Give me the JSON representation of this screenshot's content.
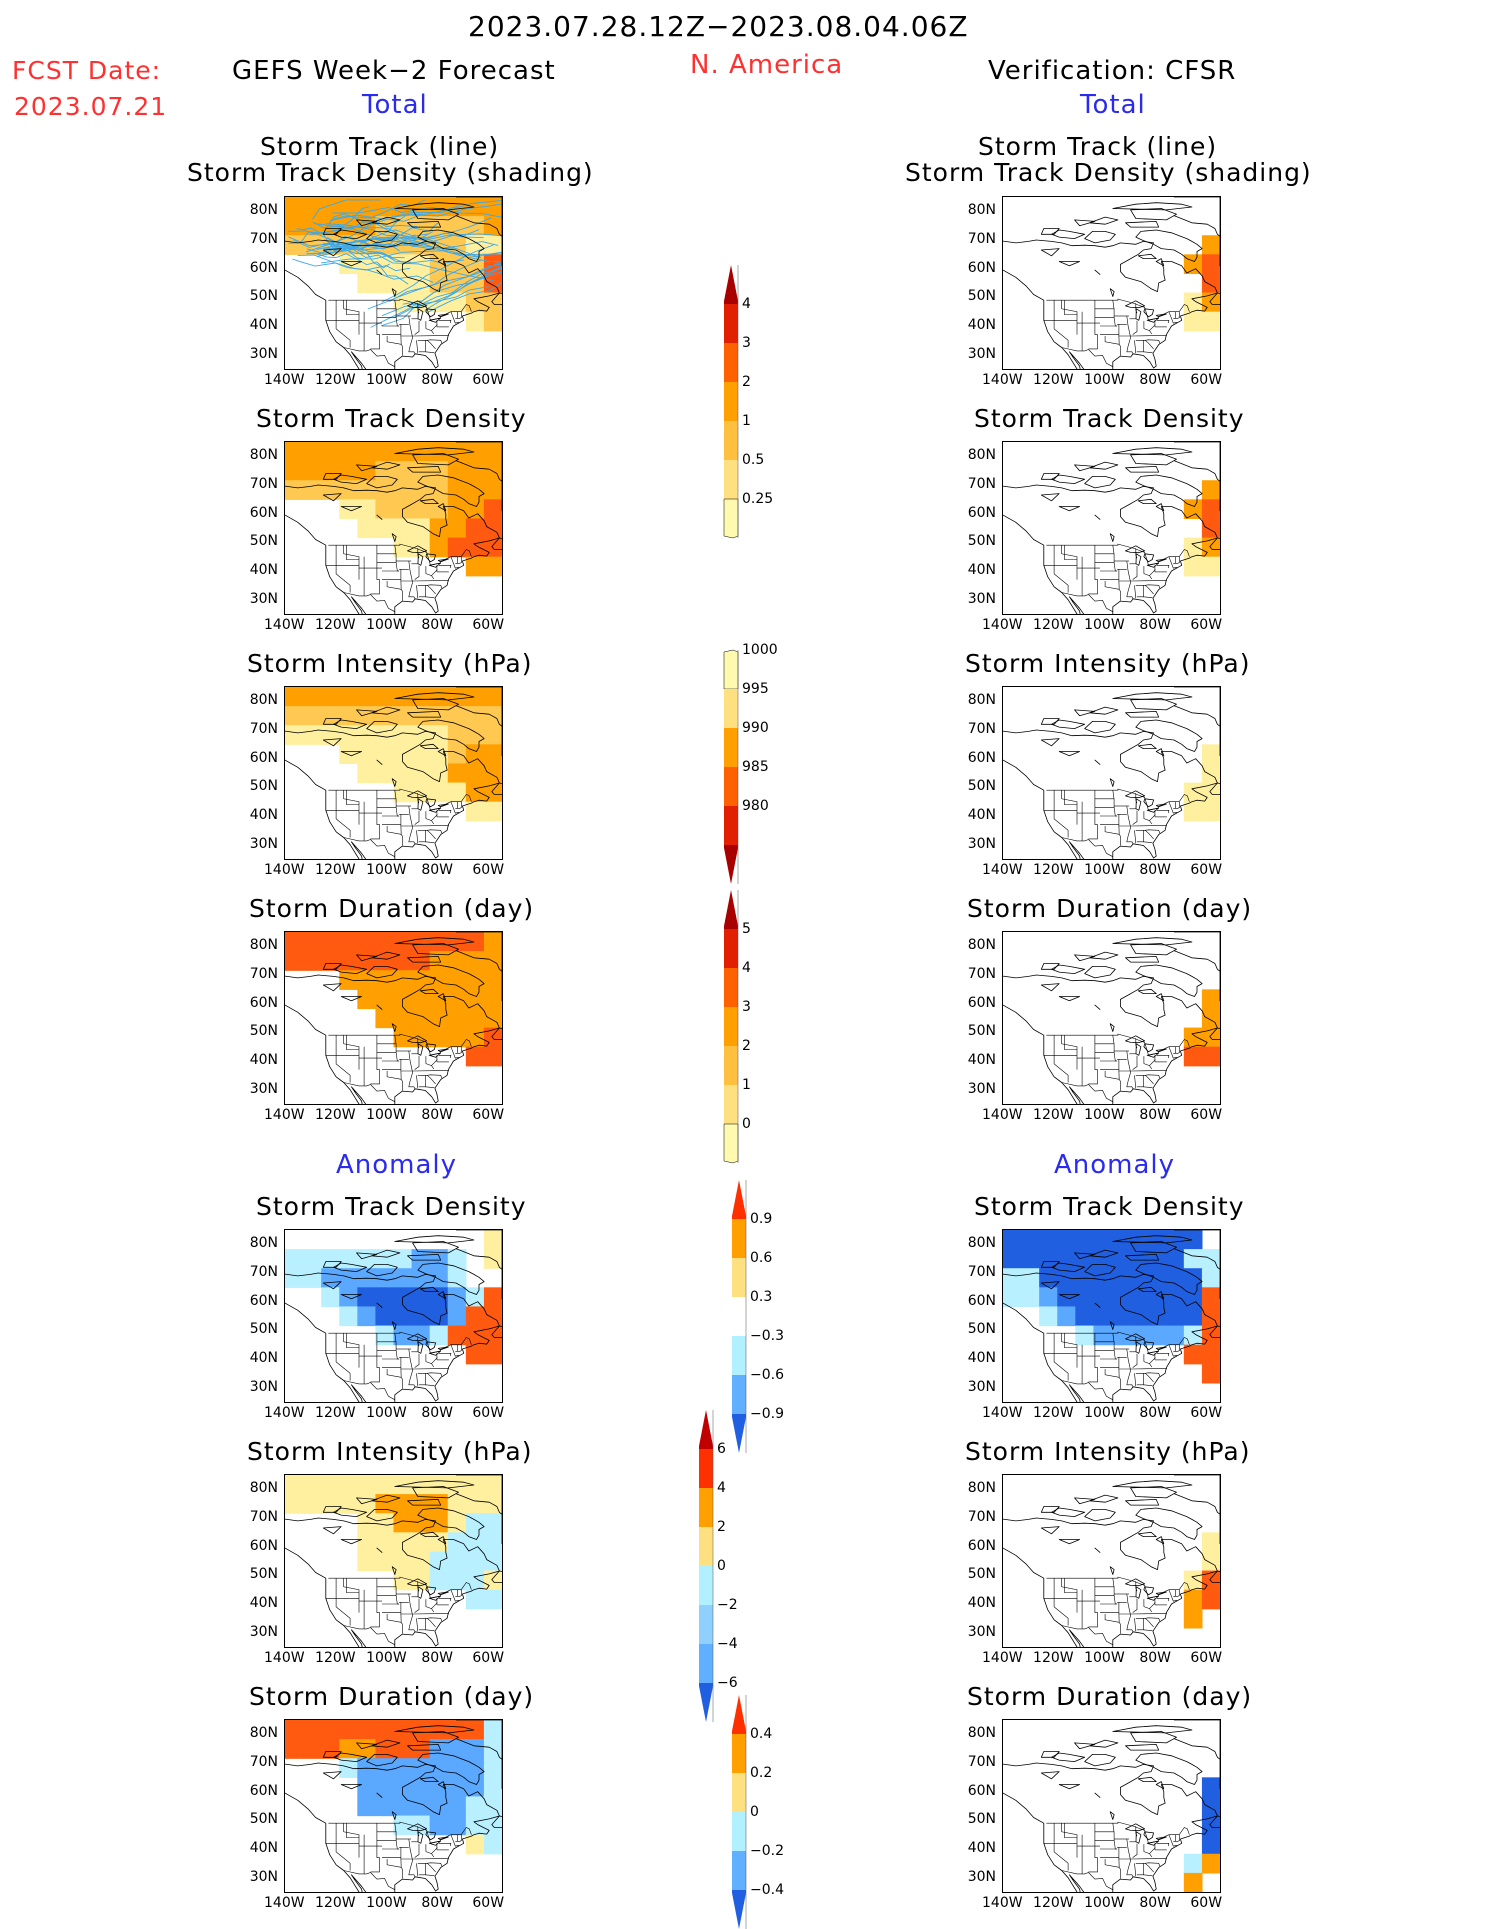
{
  "header": {
    "period": "2023.07.28.12Z−2023.08.04.06Z",
    "fcst_label": "FCST Date:",
    "fcst_date": "2023.07.21",
    "left_title": "GEFS Week−2 Forecast",
    "region": "N. America",
    "right_title": "Verification: CFSR",
    "total_left": "Total",
    "total_right": "Total",
    "anomaly_left": "Anomaly",
    "anomaly_right": "Anomaly"
  },
  "panel_titles": {
    "track_line": "Storm Track (line)",
    "track_density_shading": "Storm Track Density (shading)",
    "track_density": "Storm Track Density",
    "intensity": "Storm Intensity (hPa)",
    "duration": "Storm Duration (day)"
  },
  "axes": {
    "lat_labels": [
      "80N",
      "70N",
      "60N",
      "50N",
      "40N",
      "30N"
    ],
    "lon_labels": [
      "140W",
      "120W",
      "100W",
      "80W",
      "60W"
    ]
  },
  "colorbars": {
    "density_total": {
      "labels": [
        "4",
        "3",
        "2",
        "1",
        "0.5",
        "0.25"
      ],
      "colors": [
        "#a80000",
        "#e02000",
        "#ff6000",
        "#ffa000",
        "#ffc040",
        "#ffe080",
        "#fffab0"
      ]
    },
    "intensity_total": {
      "labels": [
        "1000",
        "995",
        "990",
        "985",
        "980"
      ],
      "colors": [
        "#fffab0",
        "#ffe080",
        "#ffa000",
        "#ff6000",
        "#e02000",
        "#a80000"
      ]
    },
    "duration_total": {
      "labels": [
        "5",
        "4",
        "3",
        "2",
        "1",
        "0"
      ],
      "colors": [
        "#a80000",
        "#e02000",
        "#ff6000",
        "#ffa000",
        "#ffc040",
        "#ffe080",
        "#fffab0"
      ]
    },
    "density_anom": {
      "labels": [
        "0.9",
        "0.6",
        "0.3",
        "−0.3",
        "−0.6",
        "−0.9"
      ],
      "colors": [
        "#ff3000",
        "#ffa000",
        "#ffe080",
        "#ffffff",
        "#b0f0ff",
        "#60b0ff",
        "#2060e0"
      ]
    },
    "intensity_anom": {
      "labels": [
        "6",
        "4",
        "2",
        "0",
        "−2",
        "−4",
        "−6"
      ],
      "colors": [
        "#c00000",
        "#ff3000",
        "#ffa000",
        "#ffe080",
        "#b0f0ff",
        "#90d0ff",
        "#60b0ff",
        "#2060e0"
      ]
    },
    "duration_anom": {
      "labels": [
        "0.4",
        "0.2",
        "0",
        "−0.2",
        "−0.4"
      ],
      "colors": [
        "#ff3000",
        "#ffa000",
        "#ffe080",
        "#b0f0ff",
        "#60b0ff",
        "#2060e0"
      ]
    }
  },
  "fields": {
    "f_track": [
      "OOOOOOOOOOOO",
      "OOOOOLLLLLLO",
      "LLLLLLLLLLYY",
      "...YYYYYLLLR",
      "....YYYYLLLR",
      "......YYYYLL",
      "..........YL",
      "............",
      "............"
    ],
    "f_dens": [
      "OOOOOOOOOOOO",
      "OOOOOLLLLOOO",
      "LLLLLLLLLOOO",
      "...YYLLLLOOR",
      "....YYYYOORR",
      "......YYORRR",
      "..........OO",
      "............",
      "............"
    ],
    "f_int": [
      "OOOOOOOOOOOO",
      "LLLLLLLLLLLL",
      "YYYYYYYYYLLL",
      "...YYYYYYLOO",
      "....YYYYYOOO",
      "......YYYYOO",
      "..........YY",
      "............",
      "............"
    ],
    "f_dur": [
      "RRRRRRRRRRRO",
      "RRRRRRRROOOO",
      "...OOOOOOOOO",
      "....OOOOOOOO",
      ".....OOOOOOO",
      "......OOOOOR",
      "..........RR",
      "............",
      "............"
    ],
    "f_dens_a": [
      "...........Y",
      "cccccccbbc.Y",
      "ccbbbbbbbc..",
      "..cbBBBBBbcR",
      "...cbBBBBbRR",
      ".....cbbcRRR",
      "..........RR",
      "............",
      "............"
    ],
    "f_int_a": [
      "YYYYYYYYYYYY",
      "YYYYYOOOOYYY",
      "....YYOOOYcc",
      "....YYYYYccc",
      "....YYYYcccc",
      "......YYcccY",
      "..........cc",
      "............",
      "............"
    ],
    "f_dur_a": [
      "RRRRRRRRRRRc",
      "RRROORRRbbbc",
      "...cbbbbbbbc",
      "....bbbbbbbc",
      "....bbbbbbcc",
      "......ccbbcc",
      "..........Yc",
      "............",
      "............"
    ],
    "v_track": [
      "............",
      "............",
      "...........O",
      "..........OR",
      "...........R",
      "..........YO",
      "..........YY",
      "............",
      "............"
    ],
    "v_int": [
      "............",
      "............",
      "............",
      "...........Y",
      "...........Y",
      "..........YY",
      "..........YY",
      "............",
      "............"
    ],
    "v_dur": [
      "............",
      "............",
      "............",
      "...........O",
      "...........O",
      "..........OO",
      "..........RR",
      "............",
      "............"
    ],
    "v_dens_a": [
      "BBBBBBBBBBB.",
      "BBBBBBBBBBcc",
      "ccBBBBBBBBBc",
      "ccbBBBBBBBBR",
      "..cbBBBBBBBR",
      "....cbbbbbcR",
      "..........RR",
      "...........R",
      "............"
    ],
    "v_int_a": [
      "............",
      "............",
      "............",
      "...........Y",
      "...........Y",
      "..........YR",
      "..........OR",
      "..........O.",
      "............"
    ],
    "v_dur_a": [
      "............",
      "............",
      "............",
      "...........B",
      "...........B",
      "...........B",
      "...........B",
      "..........cO",
      "..........O."
    ]
  }
}
